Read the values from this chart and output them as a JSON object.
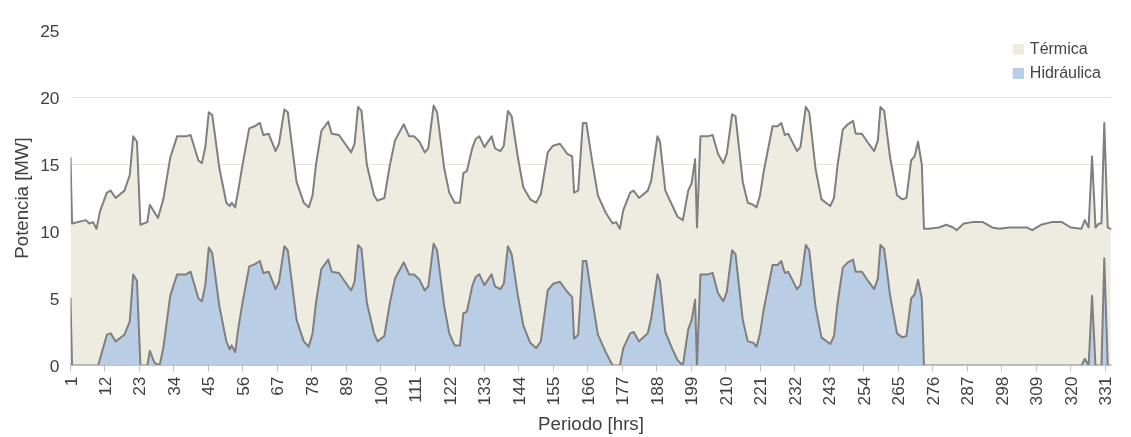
{
  "chart_data": {
    "type": "area",
    "xlabel": "Periodo [hrs]",
    "ylabel": "Potencia [MW]",
    "xlim": [
      1,
      333
    ],
    "xticks": [
      1,
      12,
      23,
      34,
      45,
      56,
      67,
      78,
      89,
      100,
      111,
      122,
      133,
      144,
      155,
      166,
      177,
      188,
      199,
      210,
      221,
      232,
      243,
      254,
      265,
      276,
      287,
      298,
      309,
      320,
      331
    ],
    "ylim": [
      0,
      25
    ],
    "yticks": [
      0,
      5,
      10,
      15,
      20,
      25
    ],
    "grid": "y",
    "legend": "top right",
    "series": [
      {
        "name": "Térmica",
        "color": "#eeece1",
        "x": [
          1,
          1.5,
          5.9,
          7,
          8.2,
          9.3,
          10.4,
          12.6,
          13.8,
          15.4,
          18.2,
          19.9,
          21,
          22.2,
          23.3,
          25.5,
          26.3,
          28.9,
          30.6,
          32.8,
          35,
          37.8,
          39.3,
          41.8,
          42.9,
          44,
          45.1,
          46.2,
          48.5,
          50.7,
          51.8,
          52.4,
          53.5,
          54.6,
          55.8,
          58,
          59.7,
          61.4,
          62.5,
          64.2,
          66.4,
          67.5,
          69.2,
          70.3,
          73.1,
          75.4,
          77,
          78.2,
          79.3,
          81,
          83.2,
          84.3,
          86.6,
          90.5,
          91.6,
          92.7,
          93.8,
          95.5,
          97.8,
          98.9,
          101.1,
          102.8,
          104.5,
          107.3,
          109,
          110.6,
          112.3,
          114,
          115.1,
          116.8,
          117.9,
          120.2,
          121.8,
          123.5,
          125.2,
          126.3,
          127.4,
          129.1,
          130.2,
          131.4,
          133,
          135.3,
          136.4,
          138.1,
          139.2,
          140.5,
          141.7,
          143.7,
          145.4,
          147.6,
          149.5,
          151,
          153.2,
          154.9,
          157.1,
          159.4,
          161,
          161.6,
          162.9,
          164.4,
          165.5,
          167.2,
          169.2,
          171.7,
          173.9,
          175,
          176.2,
          177.3,
          179.5,
          180.6,
          182.3,
          185.1,
          186.2,
          188.2,
          189,
          190.7,
          193,
          194.6,
          196.3,
          198,
          199.1,
          200.2,
          200.8,
          201.9,
          204.2,
          205.8,
          207.5,
          209.2,
          210.3,
          212,
          213.1,
          215.4,
          217,
          218.7,
          219.8,
          220.9,
          222.1,
          224.9,
          226.5,
          227.7,
          228.8,
          229.9,
          232.7,
          233.8,
          235.5,
          236.6,
          238.6,
          240.5,
          243.3,
          244.5,
          245.6,
          247.3,
          248.9,
          250.6,
          251.4,
          253.4,
          255.1,
          257.3,
          258.5,
          259.3,
          260.5,
          262.4,
          264.6,
          266.3,
          267.6,
          269.1,
          270.2,
          271.3,
          272.5,
          273.2,
          274.7,
          278,
          280.3,
          282.5,
          283.6,
          285.9,
          288.7,
          292,
          294.9,
          297.1,
          300.5,
          303.8,
          306,
          307.7,
          310.5,
          313.9,
          317.2,
          320,
          323.4,
          324.5,
          325.7,
          326.8,
          327.9,
          329,
          329.8,
          330.7,
          331.8,
          332.7
        ],
        "values": [
          15.5,
          10.6,
          10.85,
          10.6,
          10.7,
          10.2,
          11.5,
          12.9,
          13.05,
          12.5,
          13.05,
          14.2,
          17.1,
          16.7,
          10.5,
          10.7,
          12.0,
          11.0,
          12.4,
          15.5,
          17.1,
          17.1,
          17.2,
          15.3,
          15.1,
          16.3,
          18.9,
          18.7,
          14.7,
          12.15,
          11.9,
          12.15,
          11.8,
          13.2,
          14.9,
          17.7,
          17.85,
          18.1,
          17.2,
          17.3,
          16.0,
          16.55,
          19.1,
          18.9,
          13.7,
          12.15,
          11.8,
          12.7,
          15.0,
          17.5,
          18.2,
          17.3,
          17.2,
          15.9,
          16.55,
          19.3,
          19.0,
          15.0,
          12.7,
          12.3,
          12.5,
          14.9,
          16.8,
          18.0,
          17.1,
          17.1,
          16.7,
          15.9,
          16.2,
          19.4,
          18.9,
          14.7,
          12.9,
          12.15,
          12.15,
          14.35,
          14.5,
          16.2,
          16.9,
          17.1,
          16.3,
          17.1,
          16.2,
          16.0,
          16.4,
          19.0,
          18.6,
          15.5,
          13.3,
          12.4,
          12.15,
          12.8,
          15.9,
          16.4,
          16.55,
          15.8,
          15.6,
          12.9,
          13.05,
          18.1,
          18.1,
          15.5,
          12.7,
          11.4,
          10.6,
          10.7,
          10.2,
          11.6,
          12.9,
          13.05,
          12.5,
          13.05,
          13.8,
          17.1,
          16.7,
          13.05,
          11.9,
          11.1,
          10.85,
          13.05,
          13.6,
          15.4,
          10.3,
          17.1,
          17.1,
          17.2,
          15.8,
          15.1,
          15.8,
          18.75,
          18.6,
          13.7,
          12.15,
          12.0,
          11.8,
          12.7,
          14.5,
          17.85,
          17.85,
          18.1,
          17.2,
          17.3,
          16.0,
          16.3,
          19.3,
          18.9,
          14.7,
          12.4,
          11.9,
          12.5,
          14.9,
          17.6,
          18.0,
          18.25,
          17.3,
          17.3,
          16.7,
          16.0,
          16.8,
          19.3,
          19.0,
          15.5,
          12.7,
          12.4,
          12.5,
          15.3,
          15.6,
          16.7,
          15.0,
          10.2,
          10.2,
          10.3,
          10.5,
          10.3,
          10.1,
          10.6,
          10.7,
          10.7,
          10.3,
          10.2,
          10.3,
          10.3,
          10.3,
          10.1,
          10.5,
          10.7,
          10.7,
          10.3,
          10.2,
          10.85,
          10.3,
          15.6,
          10.3,
          10.6,
          10.6,
          18.1,
          10.3,
          10.2
        ]
      },
      {
        "name": "Hidráulica",
        "color": "#b9cde5",
        "x": [
          1,
          1.5,
          9.8,
          12.6,
          13.8,
          15.4,
          18.2,
          19.9,
          21,
          22.2,
          23.3,
          25.5,
          26.3,
          27.8,
          29.4,
          30.6,
          32.8,
          35,
          37.8,
          39.3,
          41.8,
          42.9,
          44,
          45.1,
          46.2,
          48.5,
          50.7,
          51.8,
          52.4,
          53.5,
          54.6,
          55.8,
          58,
          59.7,
          61.4,
          62.5,
          64.2,
          66.4,
          67.5,
          69.2,
          70.3,
          73.1,
          75.4,
          77,
          78.2,
          79.3,
          81,
          83.2,
          84.3,
          86.6,
          90.5,
          91.6,
          92.7,
          93.8,
          95.5,
          97.8,
          98.9,
          101.1,
          102.8,
          104.5,
          107.3,
          109,
          110.6,
          112.3,
          114,
          115.1,
          116.8,
          117.9,
          120.2,
          121.8,
          123.5,
          125.2,
          126.3,
          127.4,
          129.1,
          130.2,
          131.4,
          133,
          135.3,
          136.4,
          138.1,
          139.2,
          140.5,
          141.7,
          143.7,
          145.4,
          147.6,
          149.5,
          151,
          153.2,
          154.9,
          157.1,
          159.4,
          161,
          161.6,
          162.9,
          164.4,
          165.5,
          167.2,
          169.2,
          171.7,
          173.9,
          176.2,
          177.3,
          179.5,
          180.6,
          182.3,
          185.1,
          186.2,
          188.2,
          189,
          190.7,
          193,
          194.6,
          196.3,
          198,
          199.1,
          200.2,
          200.8,
          201.9,
          204.2,
          205.8,
          207.5,
          209.2,
          210.3,
          212,
          213.1,
          215.4,
          217,
          218.7,
          219.8,
          220.9,
          222.1,
          224.9,
          226.5,
          227.7,
          228.8,
          229.9,
          232.7,
          233.8,
          235.5,
          236.6,
          238.6,
          240.5,
          243.3,
          244.5,
          245.6,
          247.3,
          248.9,
          250.6,
          251.4,
          253.4,
          255.1,
          257.3,
          258.5,
          259.3,
          260.5,
          262.4,
          264.6,
          266.3,
          267.6,
          269.1,
          270.2,
          271.3,
          272.5,
          273.2,
          323.4,
          324.5,
          325.7,
          326.8,
          327.9,
          329.8,
          330.7,
          331.8,
          332.7
        ],
        "values": [
          5.0,
          0,
          0,
          2.3,
          2.4,
          1.8,
          2.3,
          3.3,
          6.8,
          6.3,
          0,
          0,
          1.1,
          0.2,
          0,
          1.3,
          5.2,
          6.8,
          6.8,
          7.0,
          5.0,
          4.8,
          6.0,
          8.8,
          8.4,
          4.4,
          1.8,
          1.2,
          1.5,
          1.0,
          2.9,
          4.6,
          7.4,
          7.55,
          7.8,
          6.9,
          7.0,
          5.7,
          6.25,
          8.9,
          8.6,
          3.4,
          1.8,
          1.4,
          2.4,
          4.7,
          7.2,
          7.9,
          7.0,
          6.9,
          5.6,
          6.25,
          9.0,
          8.7,
          4.7,
          2.4,
          1.8,
          2.2,
          4.6,
          6.5,
          7.7,
          6.8,
          6.8,
          6.4,
          5.6,
          5.9,
          9.1,
          8.6,
          4.4,
          2.4,
          1.5,
          1.5,
          3.9,
          4.0,
          5.9,
          6.6,
          6.8,
          6.0,
          6.8,
          5.9,
          5.7,
          6.1,
          8.9,
          8.3,
          5.2,
          3.0,
          1.7,
          1.3,
          1.8,
          5.6,
          6.1,
          6.25,
          5.5,
          5.1,
          2.0,
          2.3,
          7.8,
          7.8,
          5.2,
          2.3,
          1.0,
          0,
          0,
          1.3,
          2.4,
          2.5,
          1.8,
          2.4,
          3.5,
          6.8,
          6.3,
          2.5,
          1.2,
          0.4,
          0,
          2.7,
          3.4,
          4.9,
          0,
          6.8,
          6.8,
          6.9,
          5.4,
          4.8,
          5.5,
          8.6,
          8.3,
          3.4,
          1.8,
          1.7,
          1.4,
          2.4,
          4.2,
          7.5,
          7.5,
          7.8,
          6.9,
          7.0,
          5.7,
          6.0,
          9.0,
          8.6,
          4.4,
          2.1,
          1.6,
          2.2,
          4.6,
          7.3,
          7.7,
          7.9,
          7.0,
          7.0,
          6.4,
          5.7,
          6.5,
          9.0,
          8.7,
          5.2,
          2.4,
          2.1,
          2.2,
          5.0,
          5.3,
          6.4,
          5.0,
          0,
          0,
          0.5,
          0,
          5.2,
          0,
          0,
          8.0,
          0,
          0
        ]
      }
    ]
  }
}
